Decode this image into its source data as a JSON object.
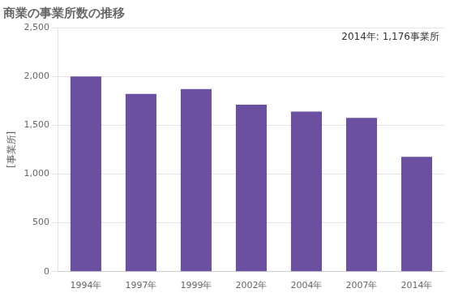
{
  "chart_data": {
    "type": "bar",
    "title": "商業の事業所数の推移",
    "ylabel": "[事業所]",
    "annotation": "2014年: 1,176事業所",
    "categories": [
      "1994年",
      "1997年",
      "1999年",
      "2002年",
      "2004年",
      "2007年",
      "2014年"
    ],
    "values": [
      2000,
      1820,
      1870,
      1710,
      1640,
      1575,
      1176
    ],
    "color": "#6B4FA0",
    "ylim": [
      0,
      2500
    ],
    "yticks": [
      0,
      500,
      {
        "value": 1000,
        "label": "1,000"
      },
      {
        "value": 1500,
        "label": "1,500"
      },
      {
        "value": 2000,
        "label": "2,000"
      },
      {
        "value": 2500,
        "label": "2,500"
      }
    ],
    "grid": true
  }
}
